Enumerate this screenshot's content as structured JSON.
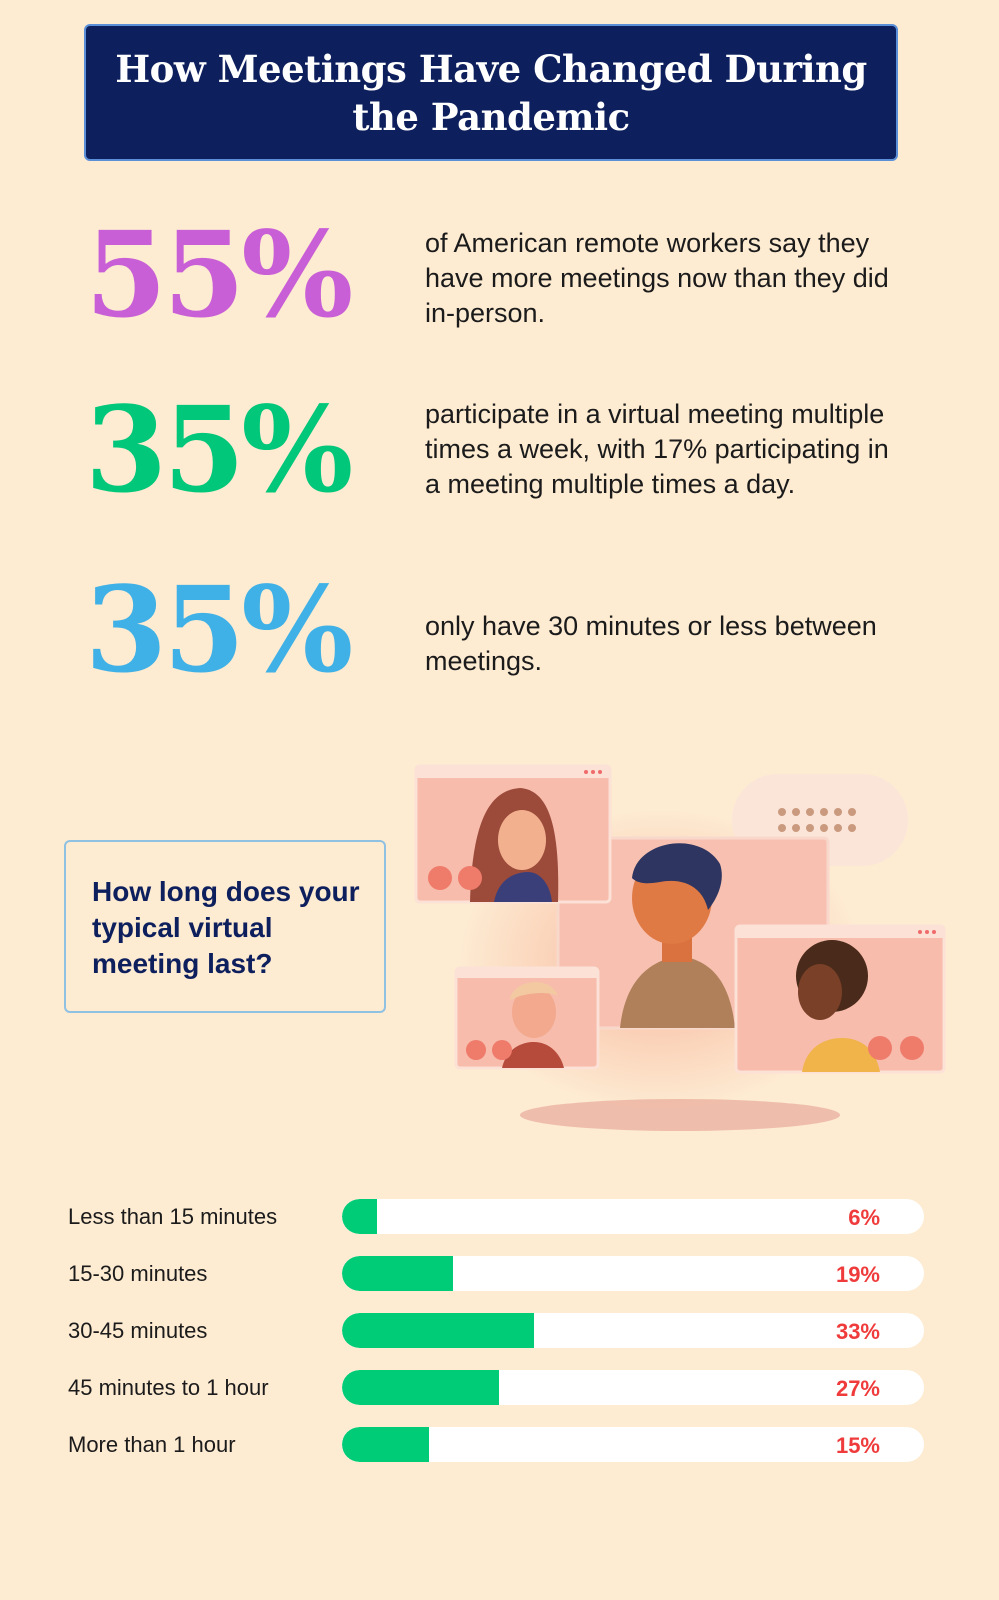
{
  "title": "How Meetings Have Changed During the Pandemic",
  "stats": [
    {
      "value": "55%",
      "color": "#c95fd6",
      "text": "of American remote workers say they have more meetings now than they did in-person."
    },
    {
      "value": "35%",
      "color": "#00c77a",
      "text": "participate in a virtual meeting multiple times a week, with 17% participating in a meeting multiple times a day."
    },
    {
      "value": "35%",
      "color": "#3fb1e6",
      "text": "only have 30 minutes or less between meetings."
    }
  ],
  "question": "How long does your typical virtual meeting last?",
  "illustration": {
    "icons": [
      "video-call-window-icon",
      "camera-icon",
      "microphone-icon",
      "chat-bubble-icon"
    ]
  },
  "colors": {
    "bar_fill": "#00cc78",
    "bar_track": "#ffffff",
    "value_text": "#ef3b3b",
    "title_bg": "#0d1f5c"
  },
  "chart_data": {
    "type": "bar",
    "orientation": "horizontal",
    "title": "How long does your typical virtual meeting last?",
    "categories": [
      "Less than 15 minutes",
      "15-30 minutes",
      "30-45 minutes",
      "45 minutes to 1 hour",
      "More than 1 hour"
    ],
    "values": [
      6,
      19,
      33,
      27,
      15
    ],
    "value_labels": [
      "6%",
      "19%",
      "33%",
      "27%",
      "15%"
    ],
    "xlim": [
      0,
      100
    ],
    "grid": false
  }
}
